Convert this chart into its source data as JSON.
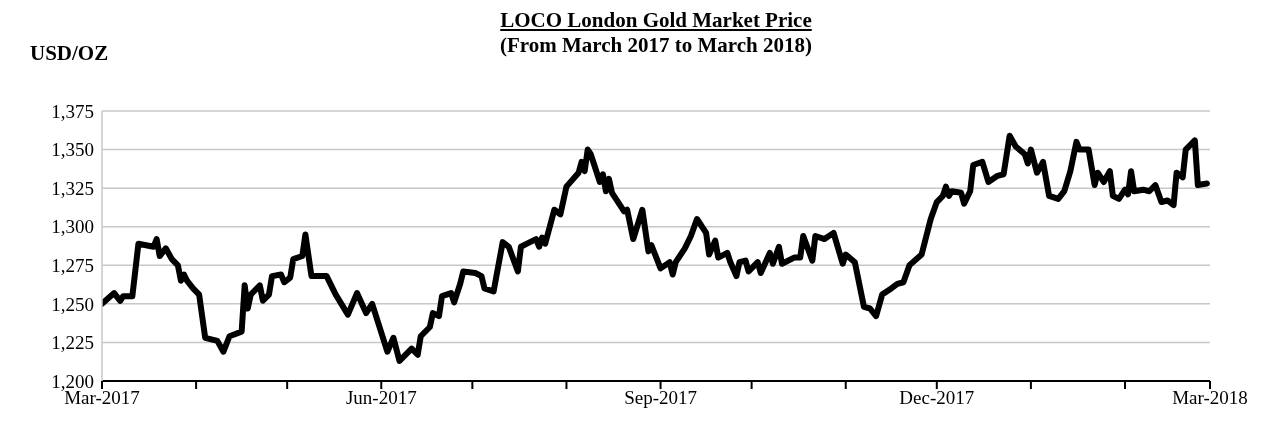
{
  "chart_data": {
    "type": "line",
    "title": "LOCO London Gold Market Price",
    "subtitle": "(From March 2017 to March 2018)",
    "ylabel": "USD/OZ",
    "x": [
      "2017-03-01",
      "2017-03-05",
      "2017-03-07",
      "2017-03-08",
      "2017-03-11",
      "2017-03-13",
      "2017-03-18",
      "2017-03-19",
      "2017-03-20",
      "2017-03-22",
      "2017-03-24",
      "2017-03-26",
      "2017-03-27",
      "2017-03-28",
      "2017-03-29",
      "2017-03-31",
      "2017-04-02",
      "2017-04-04",
      "2017-04-08",
      "2017-04-10",
      "2017-04-12",
      "2017-04-16",
      "2017-04-17",
      "2017-04-18",
      "2017-04-19",
      "2017-04-22",
      "2017-04-23",
      "2017-04-25",
      "2017-04-26",
      "2017-04-29",
      "2017-04-30",
      "2017-05-02",
      "2017-05-03",
      "2017-05-06",
      "2017-05-07",
      "2017-05-09",
      "2017-05-14",
      "2017-05-17",
      "2017-05-21",
      "2017-05-24",
      "2017-05-27",
      "2017-05-29",
      "2017-06-03",
      "2017-06-05",
      "2017-06-07",
      "2017-06-11",
      "2017-06-13",
      "2017-06-14",
      "2017-06-17",
      "2017-06-18",
      "2017-06-20",
      "2017-06-21",
      "2017-06-24",
      "2017-06-25",
      "2017-06-27",
      "2017-06-28",
      "2017-07-02",
      "2017-07-04",
      "2017-07-05",
      "2017-07-08",
      "2017-07-11",
      "2017-07-13",
      "2017-07-16",
      "2017-07-17",
      "2017-07-19",
      "2017-07-22",
      "2017-07-23",
      "2017-07-24",
      "2017-07-25",
      "2017-07-28",
      "2017-07-30",
      "2017-08-01",
      "2017-08-05",
      "2017-08-06",
      "2017-08-07",
      "2017-08-08",
      "2017-08-09",
      "2017-08-12",
      "2017-08-13",
      "2017-08-14",
      "2017-08-15",
      "2017-08-16",
      "2017-08-20",
      "2017-08-21",
      "2017-08-23",
      "2017-08-26",
      "2017-08-28",
      "2017-08-29",
      "2017-09-01",
      "2017-09-04",
      "2017-09-05",
      "2017-09-06",
      "2017-09-09",
      "2017-09-11",
      "2017-09-13",
      "2017-09-16",
      "2017-09-17",
      "2017-09-19",
      "2017-09-20",
      "2017-09-23",
      "2017-09-24",
      "2017-09-26",
      "2017-09-27",
      "2017-09-29",
      "2017-09-30",
      "2017-10-03",
      "2017-10-04",
      "2017-10-07",
      "2017-10-08",
      "2017-10-10",
      "2017-10-11",
      "2017-10-15",
      "2017-10-17",
      "2017-10-18",
      "2017-10-21",
      "2017-10-22",
      "2017-10-25",
      "2017-10-28",
      "2017-10-31",
      "2017-11-01",
      "2017-11-04",
      "2017-11-07",
      "2017-11-09",
      "2017-11-11",
      "2017-11-13",
      "2017-11-16",
      "2017-11-18",
      "2017-11-20",
      "2017-11-22",
      "2017-11-26",
      "2017-11-29",
      "2017-12-01",
      "2017-12-03",
      "2017-12-04",
      "2017-12-05",
      "2017-12-06",
      "2017-12-09",
      "2017-12-10",
      "2017-12-12",
      "2017-12-13",
      "2017-12-16",
      "2017-12-18",
      "2017-12-21",
      "2017-12-23",
      "2017-12-25",
      "2017-12-27",
      "2017-12-30",
      "2017-12-31",
      "2018-01-01",
      "2018-01-03",
      "2018-01-05",
      "2018-01-07",
      "2018-01-10",
      "2018-01-12",
      "2018-01-14",
      "2018-01-16",
      "2018-01-17",
      "2018-01-20",
      "2018-01-22",
      "2018-01-23",
      "2018-01-25",
      "2018-01-27",
      "2018-01-28",
      "2018-01-30",
      "2018-02-01",
      "2018-02-02",
      "2018-02-03",
      "2018-02-04",
      "2018-02-07",
      "2018-02-09",
      "2018-02-11",
      "2018-02-13",
      "2018-02-15",
      "2018-02-17",
      "2018-02-18",
      "2018-02-20",
      "2018-02-21",
      "2018-02-24",
      "2018-02-25",
      "2018-02-28"
    ],
    "series": [
      {
        "color": "#000000",
        "values": [
          1250,
          1257,
          1252,
          1255,
          1255,
          1289,
          1287,
          1292,
          1281,
          1286,
          1279,
          1275,
          1265,
          1269,
          1265,
          1260,
          1256,
          1228,
          1226,
          1219,
          1229,
          1232,
          1262,
          1247,
          1256,
          1262,
          1252,
          1256,
          1268,
          1269,
          1264,
          1267,
          1279,
          1281,
          1295,
          1268,
          1268,
          1256,
          1243,
          1257,
          1244,
          1250,
          1219,
          1228,
          1213,
          1221,
          1217,
          1229,
          1235,
          1244,
          1242,
          1255,
          1257,
          1251,
          1263,
          1271,
          1270,
          1268,
          1260,
          1258,
          1290,
          1287,
          1271,
          1287,
          1289,
          1292,
          1287,
          1293,
          1289,
          1311,
          1308,
          1326,
          1335,
          1342,
          1336,
          1350,
          1347,
          1329,
          1334,
          1323,
          1331,
          1322,
          1310,
          1311,
          1292,
          1311,
          1284,
          1288,
          1273,
          1277,
          1269,
          1277,
          1286,
          1294,
          1305,
          1296,
          1282,
          1291,
          1280,
          1283,
          1277,
          1268,
          1277,
          1278,
          1271,
          1277,
          1270,
          1283,
          1276,
          1287,
          1276,
          1280,
          1280,
          1294,
          1278,
          1294,
          1292,
          1296,
          1276,
          1282,
          1277,
          1248,
          1247,
          1242,
          1256,
          1260,
          1263,
          1264,
          1275,
          1282,
          1305,
          1316,
          1320,
          1326,
          1320,
          1323,
          1322,
          1315,
          1323,
          1340,
          1342,
          1329,
          1333,
          1334,
          1359,
          1352,
          1347,
          1341,
          1350,
          1335,
          1342,
          1320,
          1318,
          1323,
          1336,
          1355,
          1350,
          1350,
          1327,
          1335,
          1329,
          1336,
          1320,
          1318,
          1324,
          1321,
          1336,
          1323,
          1324,
          1323,
          1327,
          1316,
          1317,
          1314,
          1335,
          1332,
          1350,
          1356,
          1327,
          1328
        ]
      }
    ],
    "xlim": [
      "2017-03-01",
      "2018-03-01"
    ],
    "xticks": [
      {
        "value": "2017-03-01",
        "label": "Mar-2017"
      },
      {
        "value": "2017-04-01",
        "label": null
      },
      {
        "value": "2017-05-01",
        "label": null
      },
      {
        "value": "2017-06-01",
        "label": "Jun-2017"
      },
      {
        "value": "2017-07-01",
        "label": null
      },
      {
        "value": "2017-08-01",
        "label": null
      },
      {
        "value": "2017-09-01",
        "label": "Sep-2017"
      },
      {
        "value": "2017-10-01",
        "label": null
      },
      {
        "value": "2017-11-01",
        "label": null
      },
      {
        "value": "2017-12-01",
        "label": "Dec-2017"
      },
      {
        "value": "2018-01-01",
        "label": null
      },
      {
        "value": "2018-02-01",
        "label": null
      },
      {
        "value": "2018-03-01",
        "label": "Mar-2018"
      }
    ],
    "ylim": [
      1200,
      1375
    ],
    "yticks": [
      {
        "value": 1200,
        "label": "1,200"
      },
      {
        "value": 1225,
        "label": "1,225"
      },
      {
        "value": 1250,
        "label": "1,250"
      },
      {
        "value": 1275,
        "label": "1,275"
      },
      {
        "value": 1300,
        "label": "1,300"
      },
      {
        "value": 1325,
        "label": "1,325"
      },
      {
        "value": 1350,
        "label": "1,350"
      },
      {
        "value": 1375,
        "label": "1,375"
      }
    ],
    "grid": "y",
    "legend": false,
    "marker": "none",
    "line_style": "solid"
  }
}
